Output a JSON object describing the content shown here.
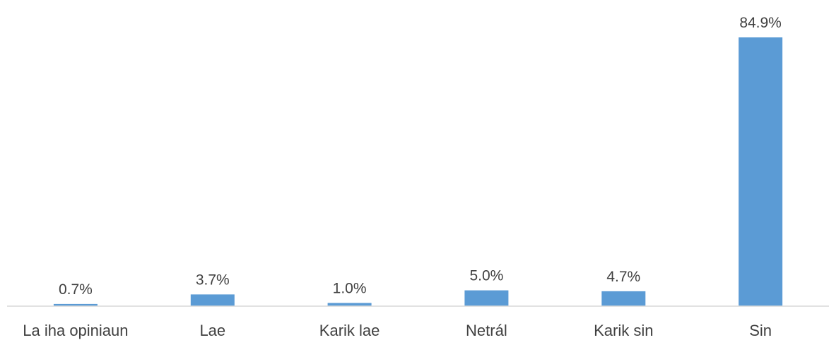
{
  "chart_data": {
    "type": "bar",
    "categories": [
      "La iha opiniaun",
      "Lae",
      "Karik lae",
      "Netrál",
      "Karik sin",
      "Sin"
    ],
    "values": [
      0.7,
      3.7,
      1.0,
      5.0,
      4.7,
      84.9
    ],
    "data_labels": [
      "0.7%",
      "3.7%",
      "1.0%",
      "5.0%",
      "4.7%",
      "84.9%"
    ],
    "title": "",
    "xlabel": "",
    "ylabel": "",
    "ylim": [
      0,
      84.9
    ],
    "grid": false,
    "legend": "none",
    "bar_color": "#5b9bd5",
    "axis_color": "#d9d9d9",
    "text_color": "#404040"
  }
}
